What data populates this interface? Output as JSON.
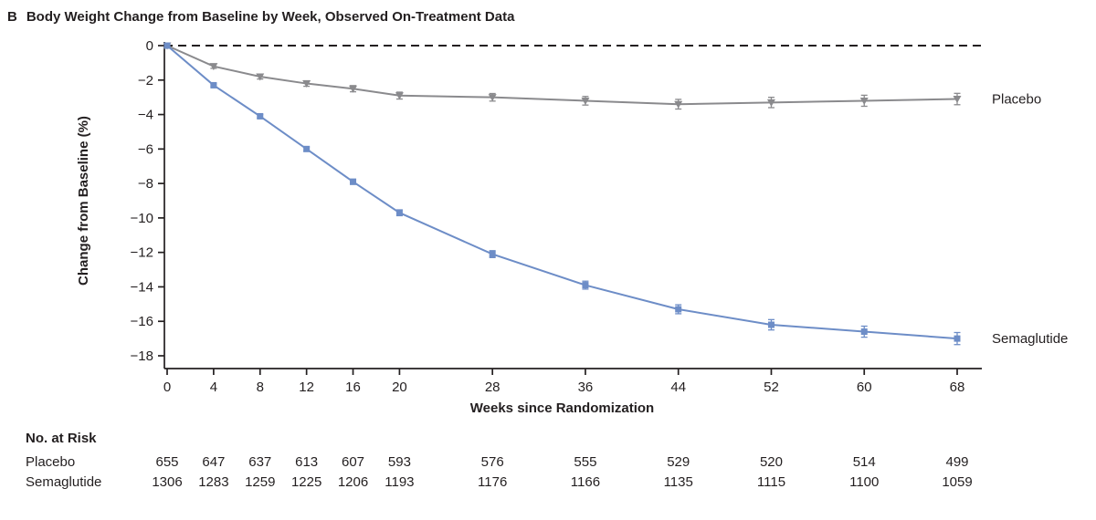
{
  "header": {
    "panel_label": "B",
    "title": "Body Weight Change from Baseline by Week, Observed On-Treatment Data"
  },
  "colors": {
    "placebo": "#8a8a8d",
    "semaglutide": "#6d8dc7",
    "axis": "#231f20"
  },
  "chart_data": {
    "type": "line",
    "x": [
      0,
      4,
      8,
      12,
      16,
      20,
      28,
      36,
      44,
      52,
      60,
      68
    ],
    "xlabel": "Weeks since Randomization",
    "ylabel": "Change from Baseline (%)",
    "ylim": [
      -18,
      0
    ],
    "yticks": [
      0,
      -2,
      -4,
      -6,
      -8,
      -10,
      -12,
      -14,
      -16,
      -18
    ],
    "zero_line_dashed": true,
    "legend_position": "right-of-line-ends",
    "grid": false,
    "series": [
      {
        "name": "Placebo",
        "color": "#8a8a8d",
        "marker": "triangle-down",
        "values": [
          0,
          -1.2,
          -1.8,
          -2.2,
          -2.5,
          -2.9,
          -3.0,
          -3.2,
          -3.4,
          -3.3,
          -3.2,
          -3.1
        ],
        "errors": [
          0,
          0.12,
          0.14,
          0.16,
          0.18,
          0.2,
          0.22,
          0.25,
          0.28,
          0.3,
          0.32,
          0.33
        ]
      },
      {
        "name": "Semaglutide",
        "color": "#6d8dc7",
        "marker": "square",
        "values": [
          0,
          -2.3,
          -4.1,
          -6.0,
          -7.9,
          -9.7,
          -12.1,
          -13.9,
          -15.3,
          -16.2,
          -16.6,
          -17.0
        ],
        "errors": [
          0,
          0.08,
          0.1,
          0.12,
          0.15,
          0.17,
          0.2,
          0.23,
          0.26,
          0.3,
          0.32,
          0.35
        ]
      }
    ]
  },
  "risk_table": {
    "title": "No. at Risk",
    "rows": [
      {
        "label": "Placebo",
        "values": [
          655,
          647,
          637,
          613,
          607,
          593,
          576,
          555,
          529,
          520,
          514,
          499
        ]
      },
      {
        "label": "Semaglutide",
        "values": [
          1306,
          1283,
          1259,
          1225,
          1206,
          1193,
          1176,
          1166,
          1135,
          1115,
          1100,
          1059
        ]
      }
    ]
  }
}
